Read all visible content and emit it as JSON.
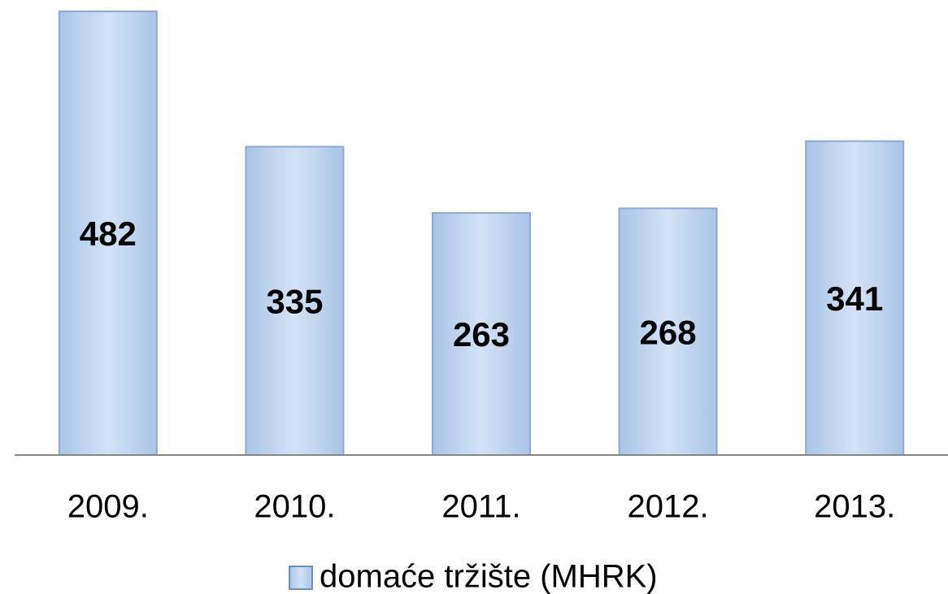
{
  "chart_data": {
    "type": "bar",
    "categories": [
      "2009.",
      "2010.",
      "2011.",
      "2012.",
      "2013."
    ],
    "series": [
      {
        "name": "domaće tržište (MHRK)",
        "color": "#c6d9f1",
        "values": [
          482,
          335,
          263,
          268,
          341
        ]
      }
    ]
  }
}
